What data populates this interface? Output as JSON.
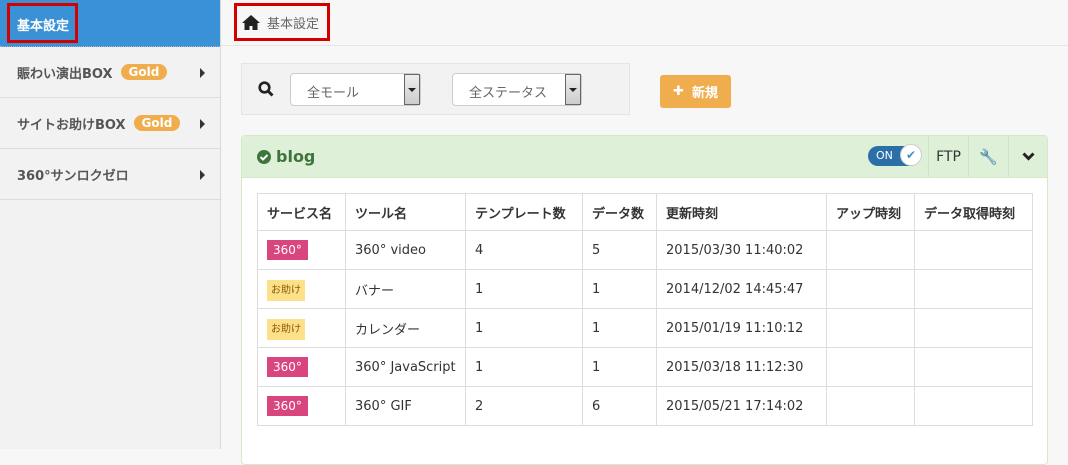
{
  "sidebar": {
    "active": "基本設定",
    "items": [
      {
        "label": "賑わい演出BOX",
        "badge": "Gold"
      },
      {
        "label": "サイトお助けBOX",
        "badge": "Gold"
      },
      {
        "label": "360°サンロクゼロ",
        "badge": null
      }
    ]
  },
  "breadcrumb": {
    "label": "基本設定",
    "icon": "home-icon"
  },
  "filters": {
    "mall": "全モール",
    "status": "全ステータス"
  },
  "new_button": "新規",
  "panel": {
    "title": "blog",
    "toggle": "ON",
    "ftp": "FTP",
    "columns": [
      "サービス名",
      "ツール名",
      "テンプレート数",
      "データ数",
      "更新時刻",
      "アップ時刻",
      "データ取得時刻"
    ],
    "rows": [
      {
        "service": "360°",
        "type": "360",
        "tool": "360° video",
        "templates": "4",
        "data": "5",
        "updated": "2015/03/30 11:40:02",
        "uploaded": "",
        "fetched": ""
      },
      {
        "service": "お助け",
        "type": "help",
        "tool": "バナー",
        "templates": "1",
        "data": "1",
        "updated": "2014/12/02 14:45:47",
        "uploaded": "",
        "fetched": ""
      },
      {
        "service": "お助け",
        "type": "help",
        "tool": "カレンダー",
        "templates": "1",
        "data": "1",
        "updated": "2015/01/19 11:10:12",
        "uploaded": "",
        "fetched": ""
      },
      {
        "service": "360°",
        "type": "360",
        "tool": "360° JavaScript",
        "templates": "1",
        "data": "1",
        "updated": "2015/03/18 11:12:30",
        "uploaded": "",
        "fetched": ""
      },
      {
        "service": "360°",
        "type": "360",
        "tool": "360° GIF",
        "templates": "2",
        "data": "6",
        "updated": "2015/05/21 17:14:02",
        "uploaded": "",
        "fetched": ""
      }
    ]
  },
  "colors": {
    "sidebar_active": "#3a91d6",
    "gold": "#f0ad4e",
    "badge_360": "#d9457f",
    "badge_help": "#fde08a",
    "panel_header": "#dff0d8",
    "highlight_border": "#d40000"
  }
}
